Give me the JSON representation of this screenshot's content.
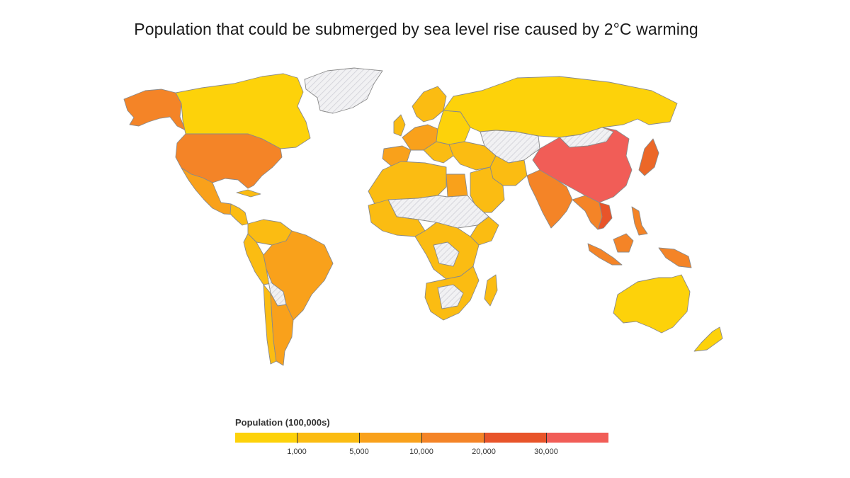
{
  "title": "Population that could be submerged by sea level rise caused by 2°C warming",
  "legend": {
    "title": "Population (100,000s)",
    "colors": [
      "#fdd20a",
      "#fbbc12",
      "#f9a11b",
      "#f48427",
      "#ec6727",
      "#e8542a",
      "#f15d57"
    ],
    "tick_labels": [
      "1,000",
      "5,000",
      "10,000",
      "20,000",
      "30,000"
    ],
    "no_data_pattern": "hatched"
  },
  "chart_data": {
    "type": "choropleth",
    "value_unit": "100,000s of people",
    "bins": [
      0,
      1000,
      5000,
      10000,
      20000,
      30000
    ],
    "regions": [
      {
        "region": "China",
        "bin": 6
      },
      {
        "region": "Vietnam",
        "bin": 5
      },
      {
        "region": "Japan",
        "bin": 4
      },
      {
        "region": "United States",
        "bin": 3
      },
      {
        "region": "Alaska",
        "bin": 3
      },
      {
        "region": "India",
        "bin": 3
      },
      {
        "region": "Bangladesh",
        "bin": 3
      },
      {
        "region": "Indonesia",
        "bin": 3
      },
      {
        "region": "Thailand",
        "bin": 3
      },
      {
        "region": "Philippines",
        "bin": 3
      },
      {
        "region": "Egypt",
        "bin": 2
      },
      {
        "region": "Brazil",
        "bin": 2
      },
      {
        "region": "Mexico",
        "bin": 2
      },
      {
        "region": "Netherlands",
        "bin": 2
      },
      {
        "region": "Argentina",
        "bin": 2
      },
      {
        "region": "Canada",
        "bin": 0
      },
      {
        "region": "Russia",
        "bin": 0
      },
      {
        "region": "Australia",
        "bin": 0
      },
      {
        "region": "Greenland",
        "bin": null
      }
    ]
  }
}
